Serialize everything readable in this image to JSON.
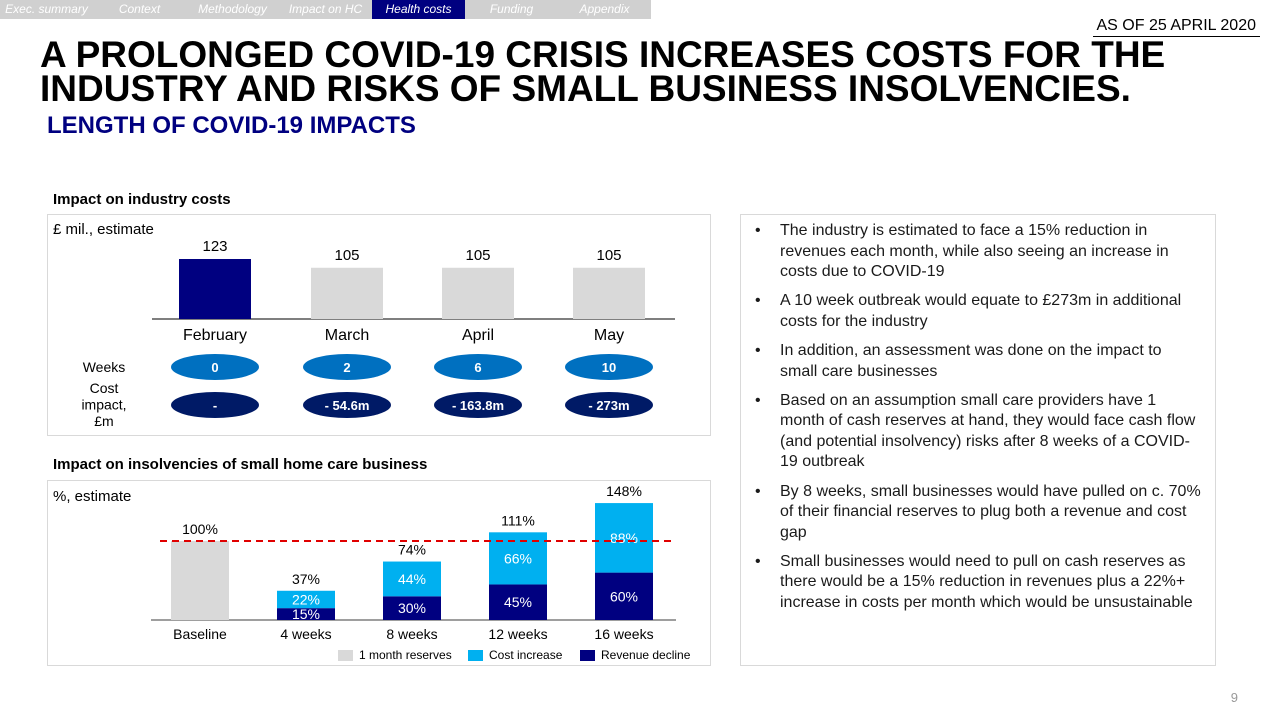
{
  "nav": {
    "tabs": [
      {
        "label": "Exec. summary",
        "active": false
      },
      {
        "label": "Context",
        "active": false
      },
      {
        "label": "Methodology",
        "active": false
      },
      {
        "label": "Impact on HC",
        "active": false
      },
      {
        "label": "Health costs",
        "active": true
      },
      {
        "label": "Funding",
        "active": false
      },
      {
        "label": "Appendix",
        "active": false
      }
    ]
  },
  "as_of": "AS OF 25 APRIL 2020",
  "title": "A PROLONGED COVID-19 CRISIS INCREASES COSTS FOR THE INDUSTRY AND RISKS OF SMALL BUSINESS INSOLVENCIES.",
  "subtitle": "LENGTH OF COVID-19 IMPACTS",
  "colors": {
    "navy": "#000080",
    "light_blue": "#00b0f0",
    "grey": "#d9d9d9",
    "oval_blue": "#0070c0",
    "dark_navy": "#001a66",
    "red_dashed": "#e00000"
  },
  "chart_data": [
    {
      "type": "bar",
      "title": "Impact on industry costs",
      "ylabel": "£ mil., estimate",
      "categories": [
        "February",
        "March",
        "April",
        "May"
      ],
      "values": [
        123,
        105,
        105,
        105
      ],
      "highlight": [
        true,
        false,
        false,
        false
      ],
      "ylim": [
        0,
        130
      ],
      "weeks_label": "Weeks",
      "weeks": [
        "0",
        "2",
        "6",
        "10"
      ],
      "cost_label": "Cost impact, £m",
      "cost_label_lines": [
        "Cost",
        "impact,",
        "£m"
      ],
      "cost_impact": [
        "-",
        "- 54.6m",
        "- 163.8m",
        "- 273m"
      ]
    },
    {
      "type": "bar",
      "title": "Impact on insolvencies of small home care business",
      "ylabel": "%, estimate",
      "categories": [
        "Baseline",
        "4 weeks",
        "8 weeks",
        "12 weeks",
        "16 weeks"
      ],
      "series": [
        {
          "name": "1 month reserves",
          "values": [
            100,
            0,
            0,
            0,
            0
          ]
        },
        {
          "name": "Revenue decline",
          "values": [
            0,
            15,
            30,
            45,
            60
          ]
        },
        {
          "name": "Cost increase",
          "values": [
            0,
            22,
            44,
            66,
            88
          ]
        }
      ],
      "totals": [
        "100%",
        "37%",
        "74%",
        "111%",
        "148%"
      ],
      "segment_labels": {
        "revenue": [
          "",
          "15%",
          "30%",
          "45%",
          "60%"
        ],
        "cost": [
          "",
          "22%",
          "44%",
          "66%",
          "88%"
        ]
      },
      "reference_line": 100,
      "ylim": [
        0,
        155
      ],
      "legend": [
        "1 month reserves",
        "Cost increase",
        "Revenue decline"
      ]
    }
  ],
  "bullets": [
    "The industry is estimated to face a 15% reduction in revenues each month, while also seeing an increase in costs due to COVID-19",
    "A 10 week outbreak would equate to £273m in additional costs for the industry",
    "In addition, an assessment was done on the impact to small care businesses",
    "Based on an assumption small care providers have 1 month of cash reserves at hand, they would face cash flow (and potential insolvency) risks after 8 weeks of a COVID-19 outbreak",
    "By 8 weeks, small businesses would have pulled on c. 70% of their financial reserves to plug both a revenue and cost gap",
    "Small businesses would need to pull on cash reserves as there would be a 15% reduction in revenues plus a 22%+ increase in costs per month which would be unsustainable"
  ],
  "page_number": "9"
}
